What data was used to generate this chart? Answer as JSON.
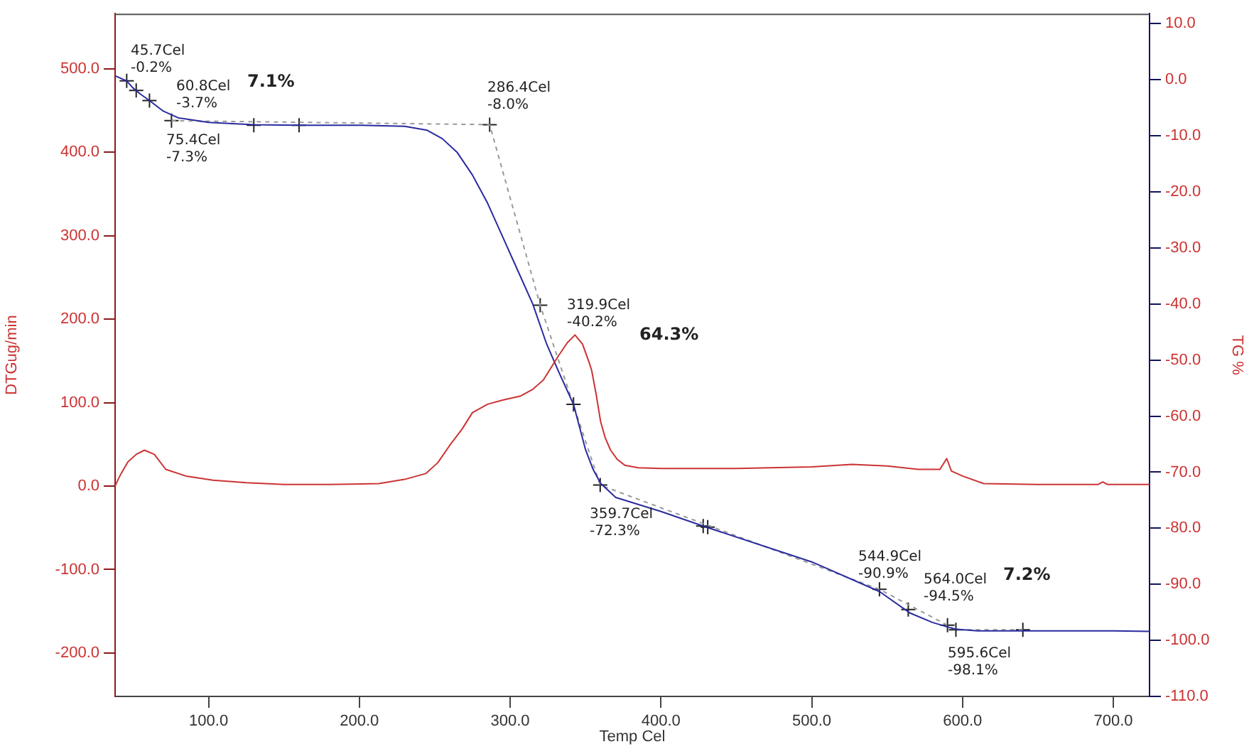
{
  "chart_data": {
    "type": "line",
    "xlabel": "Temp Cel",
    "ylabel": "DTGug/min",
    "y2label": "TG %",
    "legend": false,
    "grid": false,
    "marker": "none",
    "xlim": [
      38,
      724
    ],
    "ylim": [
      -252,
      566
    ],
    "y2lim": [
      -110,
      11.8
    ],
    "xticks": [
      {
        "value": 100,
        "label": "100.0"
      },
      {
        "value": 200,
        "label": "200.0"
      },
      {
        "value": 300,
        "label": "300.0"
      },
      {
        "value": 400,
        "label": "400.0"
      },
      {
        "value": 500,
        "label": "500.0"
      },
      {
        "value": 600,
        "label": "600.0"
      },
      {
        "value": 700,
        "label": "700.0"
      }
    ],
    "yticks": [
      {
        "value": -200,
        "label": "-200.0"
      },
      {
        "value": -100,
        "label": "-100.0"
      },
      {
        "value": 0,
        "label": "0.0"
      },
      {
        "value": 100,
        "label": "100.0"
      },
      {
        "value": 200,
        "label": "200.0"
      },
      {
        "value": 300,
        "label": "300.0"
      },
      {
        "value": 400,
        "label": "400.0"
      },
      {
        "value": 500,
        "label": "500.0"
      }
    ],
    "y2ticks": [
      {
        "value": 10,
        "label": "10.0"
      },
      {
        "value": 0,
        "label": "0.0"
      },
      {
        "value": -10,
        "label": "-10.0"
      },
      {
        "value": -20,
        "label": "-20.0"
      },
      {
        "value": -30,
        "label": "-30.0"
      },
      {
        "value": -40,
        "label": "-40.0"
      },
      {
        "value": -50,
        "label": "-50.0"
      },
      {
        "value": -60,
        "label": "-60.0"
      },
      {
        "value": -70,
        "label": "-70.0"
      },
      {
        "value": -80,
        "label": "-80.0"
      },
      {
        "value": -90,
        "label": "-90.0"
      },
      {
        "value": -100,
        "label": "-100.0"
      },
      {
        "value": -110,
        "label": "-110.0"
      }
    ],
    "series": [
      {
        "color": "#cc3333",
        "x": [
          38,
          40,
          42,
          46.5,
          52,
          57.5,
          64,
          71.6,
          85,
          103,
          125,
          150,
          180,
          213,
          230,
          244,
          252,
          260,
          268,
          275,
          285,
          295,
          307,
          315,
          322,
          332,
          338,
          343,
          348,
          352,
          354,
          357,
          360,
          363,
          366.6,
          371,
          376,
          385,
          400,
          450,
          500,
          526.7,
          550,
          570.6,
          585,
          589.5,
          592.6,
          600,
          614,
          650,
          690,
          693,
          696,
          724
        ],
        "values": [
          0,
          8,
          15,
          29,
          38,
          43,
          38,
          20,
          12,
          7,
          4,
          2,
          2,
          3,
          8,
          15,
          28,
          49,
          68,
          88,
          98,
          103,
          108,
          116,
          127,
          156,
          172,
          181,
          170,
          150,
          139,
          110,
          77,
          58,
          43,
          32,
          25,
          22,
          21,
          21,
          23,
          26,
          24,
          20,
          20,
          33,
          18,
          12,
          3,
          2,
          2,
          5,
          2,
          2
        ]
      },
      {
        "color": "#2a2aa0",
        "axis": "y2",
        "x": [
          38,
          45.7,
          50,
          55,
          60.8,
          70,
          80,
          100,
          130,
          160,
          200,
          230,
          245,
          255,
          265,
          275,
          285,
          295,
          305,
          315,
          324,
          332,
          342,
          350,
          355,
          360,
          370,
          400,
          430,
          500,
          545,
          565,
          580,
          595,
          610,
          650,
          700,
          724
        ],
        "values": [
          0.7,
          -0.2,
          -1.5,
          -2.6,
          -3.7,
          -5.6,
          -6.8,
          -7.6,
          -8.0,
          -8.1,
          -8.1,
          -8.3,
          -9,
          -10.5,
          -13,
          -17,
          -22,
          -28,
          -34,
          -40,
          -47,
          -52,
          -57.9,
          -66,
          -69.5,
          -72,
          -74.5,
          -77,
          -79.8,
          -86,
          -91.3,
          -95.1,
          -96.8,
          -98,
          -98.3,
          -98.3,
          -98.3,
          -98.4
        ]
      },
      {
        "color": "#999999",
        "axis": "y2",
        "line_style": "dashed",
        "x": [
          75.4,
          286.4,
          319.9,
          359.7,
          544.9,
          595.6,
          640
        ],
        "values": [
          -7.3,
          -8.0,
          -40.2,
          -72.3,
          -90.9,
          -98.1,
          -98.1
        ]
      },
      {
        "type": "scatter",
        "color": "#222222",
        "axis": "y2",
        "marker": "cross",
        "x": [
          45.7,
          52,
          60.8,
          75.4,
          130,
          160,
          286.4,
          319.9,
          342,
          359.7,
          428,
          431,
          544.9,
          564,
          590,
          595.6,
          640
        ],
        "values": [
          -0.2,
          -1.9,
          -3.7,
          -7.3,
          -8.1,
          -8.1,
          -8.0,
          -40.2,
          -57.9,
          -72.3,
          -79.6,
          -79.8,
          -90.9,
          -94.5,
          -97.3,
          -98.1,
          -98.1
        ]
      }
    ],
    "annotations": [
      "45.7Cel\n-0.2%",
      "60.8Cel\n-3.7%",
      "7.1%",
      "75.4Cel\n-7.3%",
      "286.4Cel\n-8.0%",
      "319.9Cel\n-40.2%",
      "64.3%",
      "359.7Cel\n-72.3%",
      "544.9Cel\n-90.9%",
      "564.0Cel\n-94.5%",
      "7.2%",
      "595.6Cel\n-98.1%"
    ]
  }
}
